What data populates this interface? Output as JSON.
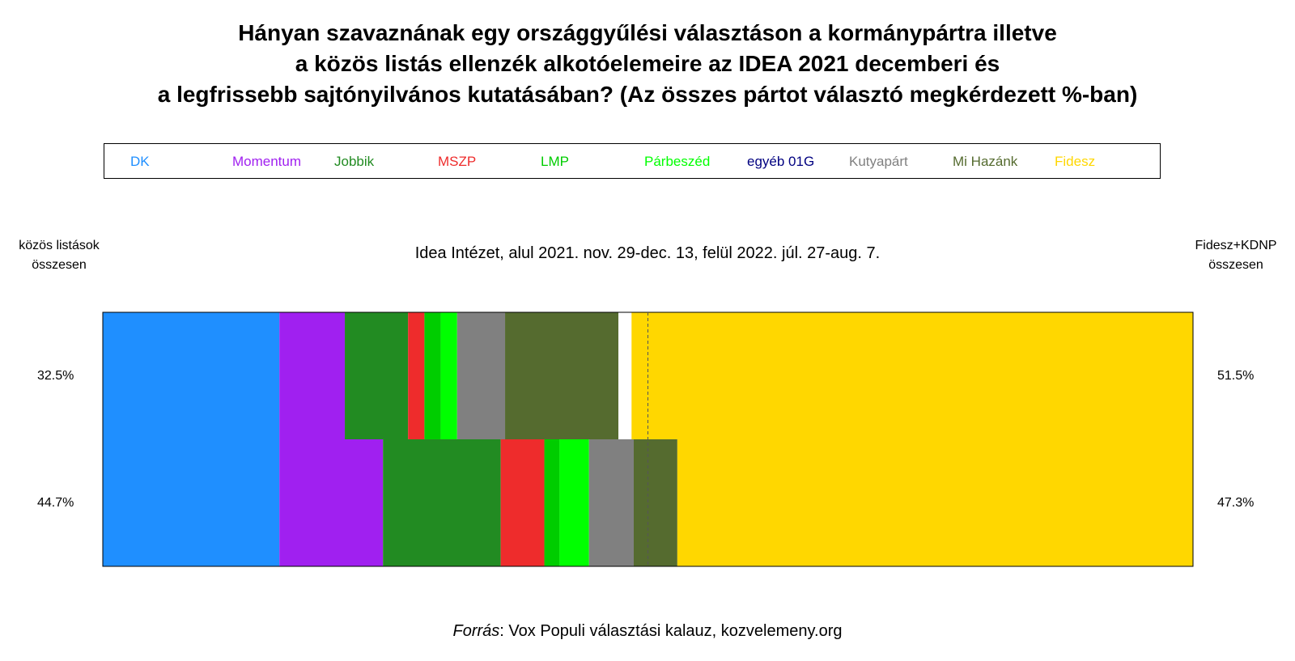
{
  "chart_data": {
    "type": "bar",
    "orientation": "horizontal-stacked",
    "title_lines": [
      "Hányan szavaznának egy országgyűlési választáson a kormánypártra illetve",
      "a közös listás ellenzék alkotóelemeire az IDEA 2021 decemberi és",
      "a legfrissebb sajtónyilvános kutatásában? (Az összes pártot választó megkérdezett %-ban)"
    ],
    "subtitle": "Idea Intézet, alul 2021. nov. 29-dec. 13, felül 2022. júl. 27-aug. 7.",
    "left_header": [
      "közös listások",
      "összesen"
    ],
    "right_header": [
      "Fidesz+KDNP",
      "összesen"
    ],
    "legend_position": "top",
    "xlim": [
      0,
      100
    ],
    "categories": [
      "DK",
      "Momentum",
      "Jobbik",
      "MSZP",
      "LMP",
      "Párbeszéd",
      "egyéb 01G",
      "Kutyapárt",
      "Mi Hazánk",
      "Fidesz"
    ],
    "colors": {
      "DK": "#1f8fff",
      "Momentum": "#a020f0",
      "Jobbik": "#228b22",
      "MSZP": "#ee2c2c",
      "LMP": "#00cd00",
      "Párbeszéd": "#00ff00",
      "egyéb 01G": "#000080",
      "Kutyapárt": "#808080",
      "Mi Hazánk": "#556b2f",
      "Fidesz": "#ffd700"
    },
    "legend_text_colors": {
      "DK": "#1f8fff",
      "Momentum": "#a020f0",
      "Jobbik": "#228b22",
      "MSZP": "#ee2c2c",
      "LMP": "#00cd00",
      "Párbeszéd": "#00ff00",
      "egyéb 01G": "#000080",
      "Kutyapárt": "#808080",
      "Mi Hazánk": "#556b2f",
      "Fidesz": "#ffd700"
    },
    "rows": [
      {
        "position": "top",
        "opposition_total": "32.5%",
        "fidesz_total": "51.5%",
        "segments": [
          {
            "party": "DK",
            "value": 16.2
          },
          {
            "party": "Momentum",
            "value": 6.0
          },
          {
            "party": "Jobbik",
            "value": 5.8
          },
          {
            "party": "MSZP",
            "value": 1.5
          },
          {
            "party": "LMP",
            "value": 1.5
          },
          {
            "party": "Párbeszéd",
            "value": 1.5
          },
          {
            "party": "Kutyapárt",
            "value": 4.4
          },
          {
            "party": "Mi Hazánk",
            "value": 10.4
          },
          {
            "party": "gap",
            "value": 1.2,
            "color": "#ffffff"
          },
          {
            "party": "Fidesz",
            "value": 51.5
          }
        ]
      },
      {
        "position": "bottom",
        "opposition_total": "44.7%",
        "fidesz_total": "47.3%",
        "segments": [
          {
            "party": "DK",
            "value": 16.2
          },
          {
            "party": "Momentum",
            "value": 9.5
          },
          {
            "party": "Jobbik",
            "value": 10.8
          },
          {
            "party": "MSZP",
            "value": 4.0
          },
          {
            "party": "LMP",
            "value": 1.4
          },
          {
            "party": "Párbeszéd",
            "value": 2.7
          },
          {
            "party": "Kutyapárt",
            "value": 4.1
          },
          {
            "party": "Mi Hazánk",
            "value": 4.0
          },
          {
            "party": "Fidesz",
            "value": 47.3
          }
        ]
      }
    ],
    "reference_line_value": 50,
    "source_label": "Forrás",
    "source_text": ": Vox Populi választási kalauz, kozvelemeny.org"
  }
}
